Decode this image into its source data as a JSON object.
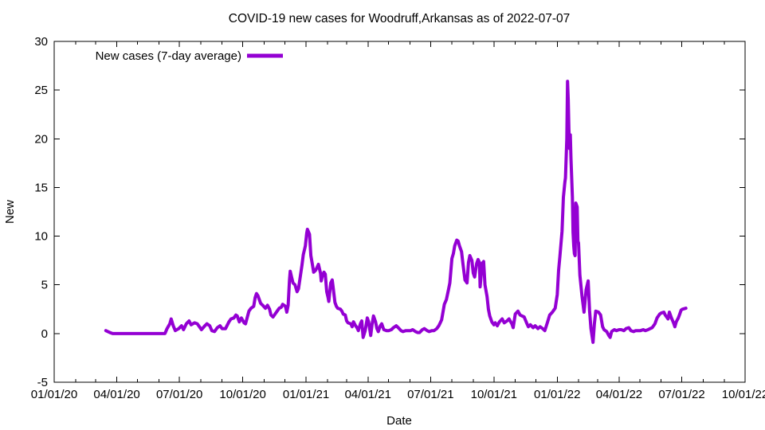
{
  "title": "COVID-19 new cases for Woodruff,Arkansas as of 2022-07-07",
  "colors": {
    "line": "#9400d3",
    "axis": "#000000",
    "text": "#000000",
    "background": "#ffffff"
  },
  "chart_data": {
    "type": "line",
    "title": "COVID-19 new cases for Woodruff,Arkansas as of 2022-07-07",
    "xlabel": "Date",
    "ylabel": "New",
    "legend": {
      "label": "New cases (7-day average)",
      "position": "top-left"
    },
    "grid": false,
    "ylim": [
      -5,
      30
    ],
    "y_ticks": [
      -5,
      0,
      5,
      10,
      15,
      20,
      25,
      30
    ],
    "x_start_date": "2020-01-01",
    "xlim_days": [
      0,
      1004
    ],
    "x_tick_labels": [
      "01/01/20",
      "04/01/20",
      "07/01/20",
      "10/01/20",
      "01/01/21",
      "04/01/21",
      "07/01/21",
      "10/01/21",
      "01/01/22",
      "04/01/22",
      "07/01/22",
      "10/01/22"
    ],
    "x_tick_days": [
      0,
      91,
      182,
      274,
      366,
      456,
      547,
      639,
      731,
      821,
      912,
      1004
    ],
    "series": [
      {
        "name": "New cases (7-day average)",
        "color": "#9400d3",
        "points_day_value": [
          [
            75,
            0.3
          ],
          [
            78,
            0.2
          ],
          [
            81,
            0.1
          ],
          [
            85,
            0
          ],
          [
            92,
            0
          ],
          [
            99,
            0
          ],
          [
            106,
            0
          ],
          [
            113,
            0
          ],
          [
            120,
            0
          ],
          [
            127,
            0
          ],
          [
            134,
            0
          ],
          [
            141,
            0
          ],
          [
            148,
            0
          ],
          [
            155,
            0
          ],
          [
            161,
            0
          ],
          [
            164,
            0.5
          ],
          [
            168,
            1
          ],
          [
            170,
            1.5
          ],
          [
            173,
            0.8
          ],
          [
            176,
            0.3
          ],
          [
            181,
            0.5
          ],
          [
            185,
            0.8
          ],
          [
            188,
            0.4
          ],
          [
            192,
            1
          ],
          [
            196,
            1.3
          ],
          [
            199,
            0.9
          ],
          [
            204,
            1.1
          ],
          [
            208,
            1
          ],
          [
            212,
            0.6
          ],
          [
            214,
            0.4
          ],
          [
            219,
            0.8
          ],
          [
            222,
            1
          ],
          [
            226,
            0.8
          ],
          [
            229,
            0.3
          ],
          [
            233,
            0.2
          ],
          [
            237,
            0.6
          ],
          [
            241,
            0.8
          ],
          [
            244,
            0.5
          ],
          [
            249,
            0.5
          ],
          [
            254,
            1.2
          ],
          [
            257,
            1.5
          ],
          [
            261,
            1.6
          ],
          [
            264,
            1.9
          ],
          [
            266,
            1.8
          ],
          [
            269,
            1.2
          ],
          [
            272,
            1.6
          ],
          [
            276,
            1.1
          ],
          [
            278,
            1
          ],
          [
            283,
            2.3
          ],
          [
            286,
            2.6
          ],
          [
            290,
            2.8
          ],
          [
            292,
            3.7
          ],
          [
            294,
            4.1
          ],
          [
            296,
            3.9
          ],
          [
            300,
            3.1
          ],
          [
            303,
            2.9
          ],
          [
            307,
            2.6
          ],
          [
            310,
            2.9
          ],
          [
            313,
            2.5
          ],
          [
            315,
            1.9
          ],
          [
            318,
            1.7
          ],
          [
            321,
            2
          ],
          [
            324,
            2.3
          ],
          [
            327,
            2.6
          ],
          [
            330,
            2.7
          ],
          [
            332,
            3
          ],
          [
            336,
            2.8
          ],
          [
            338,
            2.2
          ],
          [
            340,
            2.9
          ],
          [
            342,
            5.5
          ],
          [
            343,
            6.4
          ],
          [
            345,
            5.8
          ],
          [
            347,
            5.2
          ],
          [
            350,
            5
          ],
          [
            353,
            4.3
          ],
          [
            355,
            4.6
          ],
          [
            358,
            6
          ],
          [
            360,
            7
          ],
          [
            362,
            8.1
          ],
          [
            365,
            9
          ],
          [
            367,
            10.3
          ],
          [
            368,
            10.7
          ],
          [
            371,
            10.2
          ],
          [
            373,
            8
          ],
          [
            375,
            7.2
          ],
          [
            377,
            6.3
          ],
          [
            380,
            6.5
          ],
          [
            382,
            6.8
          ],
          [
            384,
            7.1
          ],
          [
            387,
            6.2
          ],
          [
            388,
            5.4
          ],
          [
            390,
            6
          ],
          [
            392,
            6.3
          ],
          [
            394,
            6.1
          ],
          [
            396,
            4.3
          ],
          [
            398,
            3.7
          ],
          [
            399,
            3.3
          ],
          [
            402,
            5.2
          ],
          [
            404,
            5.5
          ],
          [
            405,
            5
          ],
          [
            408,
            3.2
          ],
          [
            410,
            2.8
          ],
          [
            412,
            2.6
          ],
          [
            416,
            2.5
          ],
          [
            418,
            2.3
          ],
          [
            420,
            2
          ],
          [
            423,
            1.9
          ],
          [
            425,
            1.3
          ],
          [
            427,
            1.1
          ],
          [
            431,
            1
          ],
          [
            433,
            0.7
          ],
          [
            435,
            1.2
          ],
          [
            438,
            0.8
          ],
          [
            440,
            0.6
          ],
          [
            442,
            0.3
          ],
          [
            445,
            1
          ],
          [
            447,
            1.3
          ],
          [
            449,
            -0.4
          ],
          [
            452,
            0.3
          ],
          [
            455,
            1.6
          ],
          [
            457,
            1.2
          ],
          [
            460,
            -0.2
          ],
          [
            462,
            1
          ],
          [
            464,
            1.8
          ],
          [
            467,
            1.2
          ],
          [
            469,
            0.5
          ],
          [
            471,
            0.2
          ],
          [
            474,
            0.8
          ],
          [
            476,
            1
          ],
          [
            479,
            0.4
          ],
          [
            483,
            0.3
          ],
          [
            486,
            0.3
          ],
          [
            490,
            0.4
          ],
          [
            493,
            0.6
          ],
          [
            497,
            0.8
          ],
          [
            500,
            0.6
          ],
          [
            504,
            0.3
          ],
          [
            507,
            0.2
          ],
          [
            511,
            0.3
          ],
          [
            514,
            0.3
          ],
          [
            518,
            0.3
          ],
          [
            521,
            0.4
          ],
          [
            525,
            0.2
          ],
          [
            528,
            0.1
          ],
          [
            531,
            0.1
          ],
          [
            535,
            0.4
          ],
          [
            538,
            0.5
          ],
          [
            542,
            0.3
          ],
          [
            545,
            0.2
          ],
          [
            549,
            0.3
          ],
          [
            552,
            0.3
          ],
          [
            556,
            0.5
          ],
          [
            559,
            0.8
          ],
          [
            563,
            1.4
          ],
          [
            565,
            2.2
          ],
          [
            567,
            3
          ],
          [
            570,
            3.5
          ],
          [
            573,
            4.5
          ],
          [
            575,
            5.2
          ],
          [
            578,
            7.7
          ],
          [
            580,
            8.2
          ],
          [
            582,
            9
          ],
          [
            585,
            9.6
          ],
          [
            587,
            9.5
          ],
          [
            589,
            9
          ],
          [
            592,
            8.4
          ],
          [
            594,
            7.2
          ],
          [
            597,
            5.5
          ],
          [
            600,
            5.2
          ],
          [
            602,
            7.3
          ],
          [
            604,
            8
          ],
          [
            607,
            7.5
          ],
          [
            609,
            6.2
          ],
          [
            611,
            5.8
          ],
          [
            614,
            7.2
          ],
          [
            616,
            7.6
          ],
          [
            618,
            7.3
          ],
          [
            619,
            4.8
          ],
          [
            622,
            7.2
          ],
          [
            624,
            7.4
          ],
          [
            626,
            5
          ],
          [
            629,
            3.8
          ],
          [
            631,
            2.5
          ],
          [
            633,
            1.8
          ],
          [
            636,
            1.2
          ],
          [
            639,
            0.9
          ],
          [
            641,
            1.1
          ],
          [
            644,
            0.8
          ],
          [
            647,
            1.2
          ],
          [
            651,
            1.5
          ],
          [
            654,
            1.1
          ],
          [
            658,
            1.3
          ],
          [
            661,
            1.5
          ],
          [
            665,
            1
          ],
          [
            667,
            0.6
          ],
          [
            670,
            2
          ],
          [
            674,
            2.3
          ],
          [
            677,
            1.9
          ],
          [
            680,
            1.8
          ],
          [
            683,
            1.7
          ],
          [
            687,
            1
          ],
          [
            689,
            0.7
          ],
          [
            692,
            0.9
          ],
          [
            696,
            0.6
          ],
          [
            699,
            0.8
          ],
          [
            703,
            0.5
          ],
          [
            706,
            0.7
          ],
          [
            710,
            0.5
          ],
          [
            713,
            0.3
          ],
          [
            717,
            1.2
          ],
          [
            720,
            1.9
          ],
          [
            724,
            2.2
          ],
          [
            726,
            2.4
          ],
          [
            728,
            2.6
          ],
          [
            731,
            4
          ],
          [
            733,
            6.5
          ],
          [
            735,
            8
          ],
          [
            738,
            10.5
          ],
          [
            740,
            14
          ],
          [
            742,
            15.5
          ],
          [
            743,
            16
          ],
          [
            745,
            20
          ],
          [
            746,
            25.9
          ],
          [
            747,
            24
          ],
          [
            748,
            21
          ],
          [
            749,
            19
          ],
          [
            750,
            20.4
          ],
          [
            751,
            18
          ],
          [
            753,
            14
          ],
          [
            754,
            10.4
          ],
          [
            755,
            9
          ],
          [
            756,
            8.2
          ],
          [
            757,
            8
          ],
          [
            758,
            13.4
          ],
          [
            760,
            13
          ],
          [
            761,
            9.5
          ],
          [
            762,
            9.3
          ],
          [
            764,
            6
          ],
          [
            767,
            3.9
          ],
          [
            770,
            2.2
          ],
          [
            773,
            4.5
          ],
          [
            776,
            5.4
          ],
          [
            778,
            2.4
          ],
          [
            780,
            0.5
          ],
          [
            783,
            -0.9
          ],
          [
            785,
            1
          ],
          [
            787,
            2.3
          ],
          [
            791,
            2.2
          ],
          [
            794,
            1.9
          ],
          [
            797,
            0.7
          ],
          [
            799,
            0.4
          ],
          [
            801,
            0.3
          ],
          [
            803,
            0.2
          ],
          [
            806,
            -0.2
          ],
          [
            808,
            -0.4
          ],
          [
            810,
            0.2
          ],
          [
            814,
            0.4
          ],
          [
            817,
            0.3
          ],
          [
            821,
            0.4
          ],
          [
            824,
            0.4
          ],
          [
            828,
            0.3
          ],
          [
            831,
            0.5
          ],
          [
            835,
            0.6
          ],
          [
            838,
            0.3
          ],
          [
            842,
            0.2
          ],
          [
            845,
            0.3
          ],
          [
            849,
            0.3
          ],
          [
            852,
            0.3
          ],
          [
            856,
            0.4
          ],
          [
            859,
            0.3
          ],
          [
            863,
            0.4
          ],
          [
            866,
            0.5
          ],
          [
            869,
            0.6
          ],
          [
            873,
            1
          ],
          [
            876,
            1.6
          ],
          [
            880,
            2
          ],
          [
            882,
            2.1
          ],
          [
            886,
            2.2
          ],
          [
            888,
            1.9
          ],
          [
            892,
            1.5
          ],
          [
            894,
            2.2
          ],
          [
            897,
            1.6
          ],
          [
            900,
            1.1
          ],
          [
            902,
            0.7
          ],
          [
            904,
            1.2
          ],
          [
            907,
            1.6
          ],
          [
            909,
            2
          ],
          [
            911,
            2.4
          ],
          [
            913,
            2.5
          ],
          [
            918,
            2.6
          ]
        ]
      }
    ]
  }
}
